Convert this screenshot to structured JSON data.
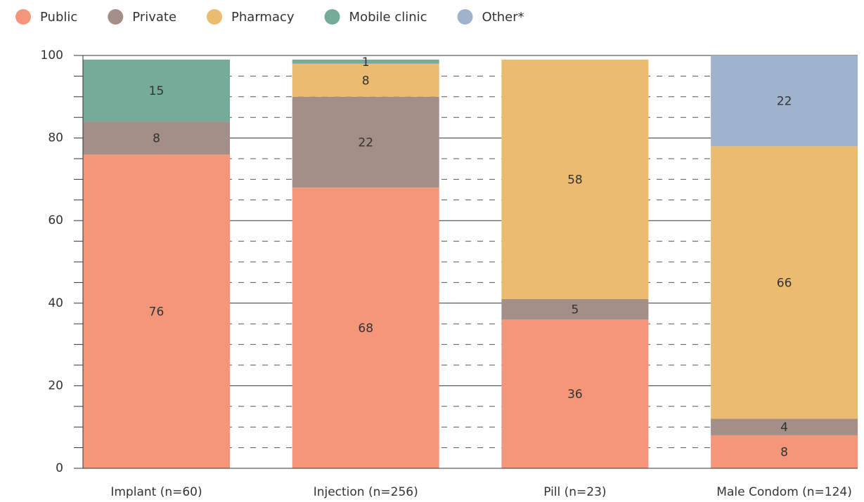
{
  "chart_data": {
    "type": "stacked_bar",
    "categories": [
      "Implant (n=60)",
      "Injection (n=256)",
      "Pill (n=23)",
      "Male Condom (n=124)"
    ],
    "series": [
      {
        "name": "Public",
        "color": "#f4967a",
        "values": [
          76,
          68,
          36,
          8
        ]
      },
      {
        "name": "Private",
        "color": "#a38f88",
        "values": [
          8,
          22,
          5,
          4
        ]
      },
      {
        "name": "Pharmacy",
        "color": "#ebbb70",
        "values": [
          null,
          8,
          58,
          66
        ]
      },
      {
        "name": "Mobile clinic",
        "color": "#76ab99",
        "values": [
          15,
          1,
          null,
          null
        ]
      },
      {
        "name": "Other*",
        "color": "#a0b3cc",
        "values": [
          null,
          null,
          null,
          22
        ]
      }
    ],
    "ylim": [
      0,
      100
    ],
    "yticks": [
      0,
      20,
      40,
      60,
      80,
      100
    ],
    "minor_yticks": [
      5,
      10,
      15,
      25,
      30,
      35,
      45,
      50,
      55,
      65,
      70,
      75,
      85,
      90,
      95
    ],
    "grid": true,
    "legend": "top-left"
  }
}
